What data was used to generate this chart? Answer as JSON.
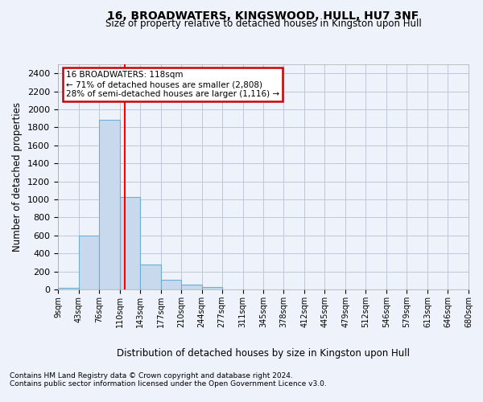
{
  "title": "16, BROADWATERS, KINGSWOOD, HULL, HU7 3NF",
  "subtitle": "Size of property relative to detached houses in Kingston upon Hull",
  "xlabel": "Distribution of detached houses by size in Kingston upon Hull",
  "ylabel": "Number of detached properties",
  "footnote1": "Contains HM Land Registry data © Crown copyright and database right 2024.",
  "footnote2": "Contains public sector information licensed under the Open Government Licence v3.0.",
  "annotation_line1": "16 BROADWATERS: 118sqm",
  "annotation_line2": "← 71% of detached houses are smaller (2,808)",
  "annotation_line3": "28% of semi-detached houses are larger (1,116) →",
  "property_size": 118,
  "bin_edges": [
    9,
    43,
    76,
    110,
    143,
    177,
    210,
    244,
    277,
    311,
    345,
    378,
    412,
    445,
    479,
    512,
    546,
    579,
    613,
    646,
    680
  ],
  "bar_heights": [
    20,
    600,
    1880,
    1030,
    280,
    110,
    50,
    25,
    0,
    0,
    0,
    0,
    0,
    0,
    0,
    0,
    0,
    0,
    0,
    0
  ],
  "bar_color": "#c8d9ee",
  "bar_edgecolor": "#6baed6",
  "vline_color": "red",
  "vline_x": 118,
  "ylim": [
    0,
    2500
  ],
  "yticks": [
    0,
    200,
    400,
    600,
    800,
    1000,
    1200,
    1400,
    1600,
    1800,
    2000,
    2200,
    2400
  ],
  "annotation_box_edgecolor": "#cc0000",
  "annotation_box_facecolor": "white",
  "grid_color": "#c0c8d8",
  "background_color": "#eef2fa"
}
